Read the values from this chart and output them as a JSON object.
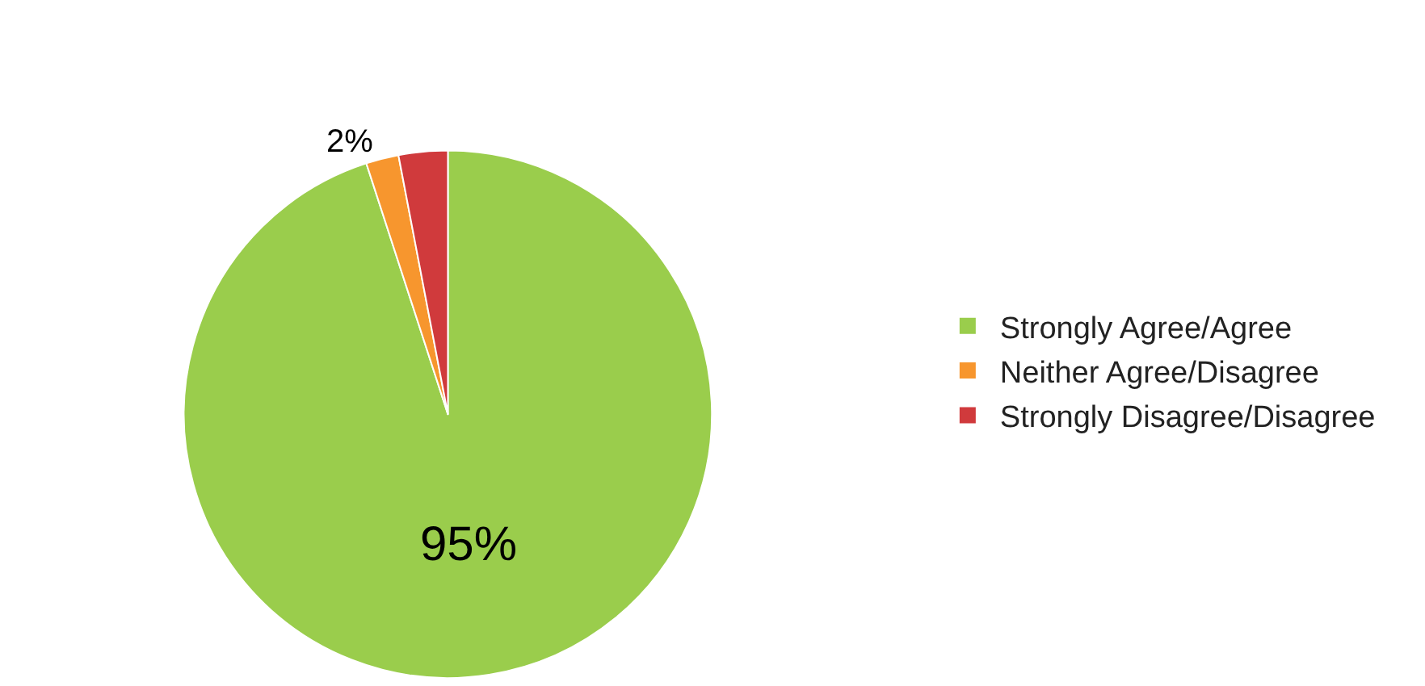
{
  "chart_data": {
    "type": "pie",
    "categories": [
      "Strongly Agree/Agree",
      "Neither Agree/Disagree",
      "Strongly Disagree/Disagree"
    ],
    "values": [
      95,
      2,
      3
    ],
    "colors": [
      "#9acd4c",
      "#f7962e",
      "#d03a3c"
    ],
    "value_labels": [
      "95%",
      "2%",
      null
    ],
    "legend": "right"
  }
}
